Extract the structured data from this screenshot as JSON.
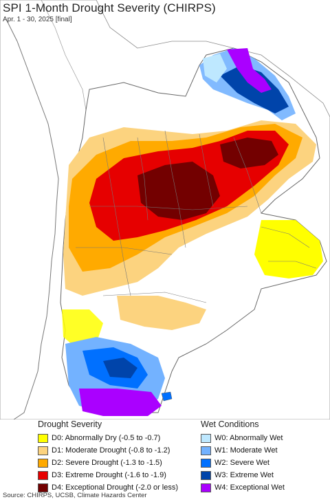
{
  "title": "SPI 1-Month Drought Severity (CHIRPS)",
  "subtitle": "Apr. 1 - 30, 2025 [final]",
  "legend": {
    "drought": {
      "heading": "Drought Severity",
      "items": [
        {
          "label": "D0: Abnormally Dry (-0.5 to -0.7)",
          "color": "#ffff00"
        },
        {
          "label": "D1: Moderate Drought (-0.8 to -1.2)",
          "color": "#fcd37f"
        },
        {
          "label": "D2: Severe Drought (-1.3 to -1.5)",
          "color": "#ffaa00"
        },
        {
          "label": "D3: Extreme Drought (-1.6 to -1.9)",
          "color": "#e60000"
        },
        {
          "label": "D4: Exceptional Drought (-2.0 or less)",
          "color": "#730000"
        }
      ]
    },
    "wet": {
      "heading": "Wet Conditions",
      "items": [
        {
          "label": "W0: Abnormally Wet",
          "color": "#bee8ff"
        },
        {
          "label": "W1: Moderate Wet",
          "color": "#73b2ff"
        },
        {
          "label": "W2: Severe Wet",
          "color": "#0070ff"
        },
        {
          "label": "W3: Extreme Wet",
          "color": "#0044aa"
        },
        {
          "label": "W4: Exceptional Wet",
          "color": "#aa00ff"
        }
      ]
    }
  },
  "source": "Source: CHIRPS, UCSB, Climate Hazards Center"
}
